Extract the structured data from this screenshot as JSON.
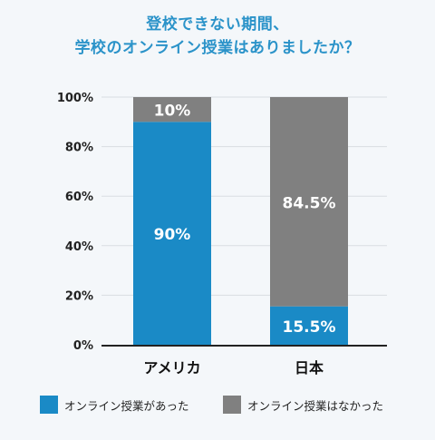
{
  "title": {
    "line1": "登校できない期間、",
    "line2": "学校のオンライン授業はありましたか？"
  },
  "chart_data": {
    "type": "bar",
    "stacked": true,
    "categories": [
      "アメリカ",
      "日本"
    ],
    "series": [
      {
        "name": "オンライン授業があった",
        "color": "#1a8ac6",
        "values": [
          90,
          15.5
        ],
        "labels": [
          "90%",
          "15.5%"
        ]
      },
      {
        "name": "オンライン授業はなかった",
        "color": "#808080",
        "values": [
          10,
          84.5
        ],
        "labels": [
          "10%",
          "84.5%"
        ]
      }
    ],
    "ylim": [
      0,
      100
    ],
    "yticks": [
      "0%",
      "20%",
      "40%",
      "60%",
      "80%",
      "100%"
    ],
    "grid": true,
    "legend": "bottom"
  }
}
